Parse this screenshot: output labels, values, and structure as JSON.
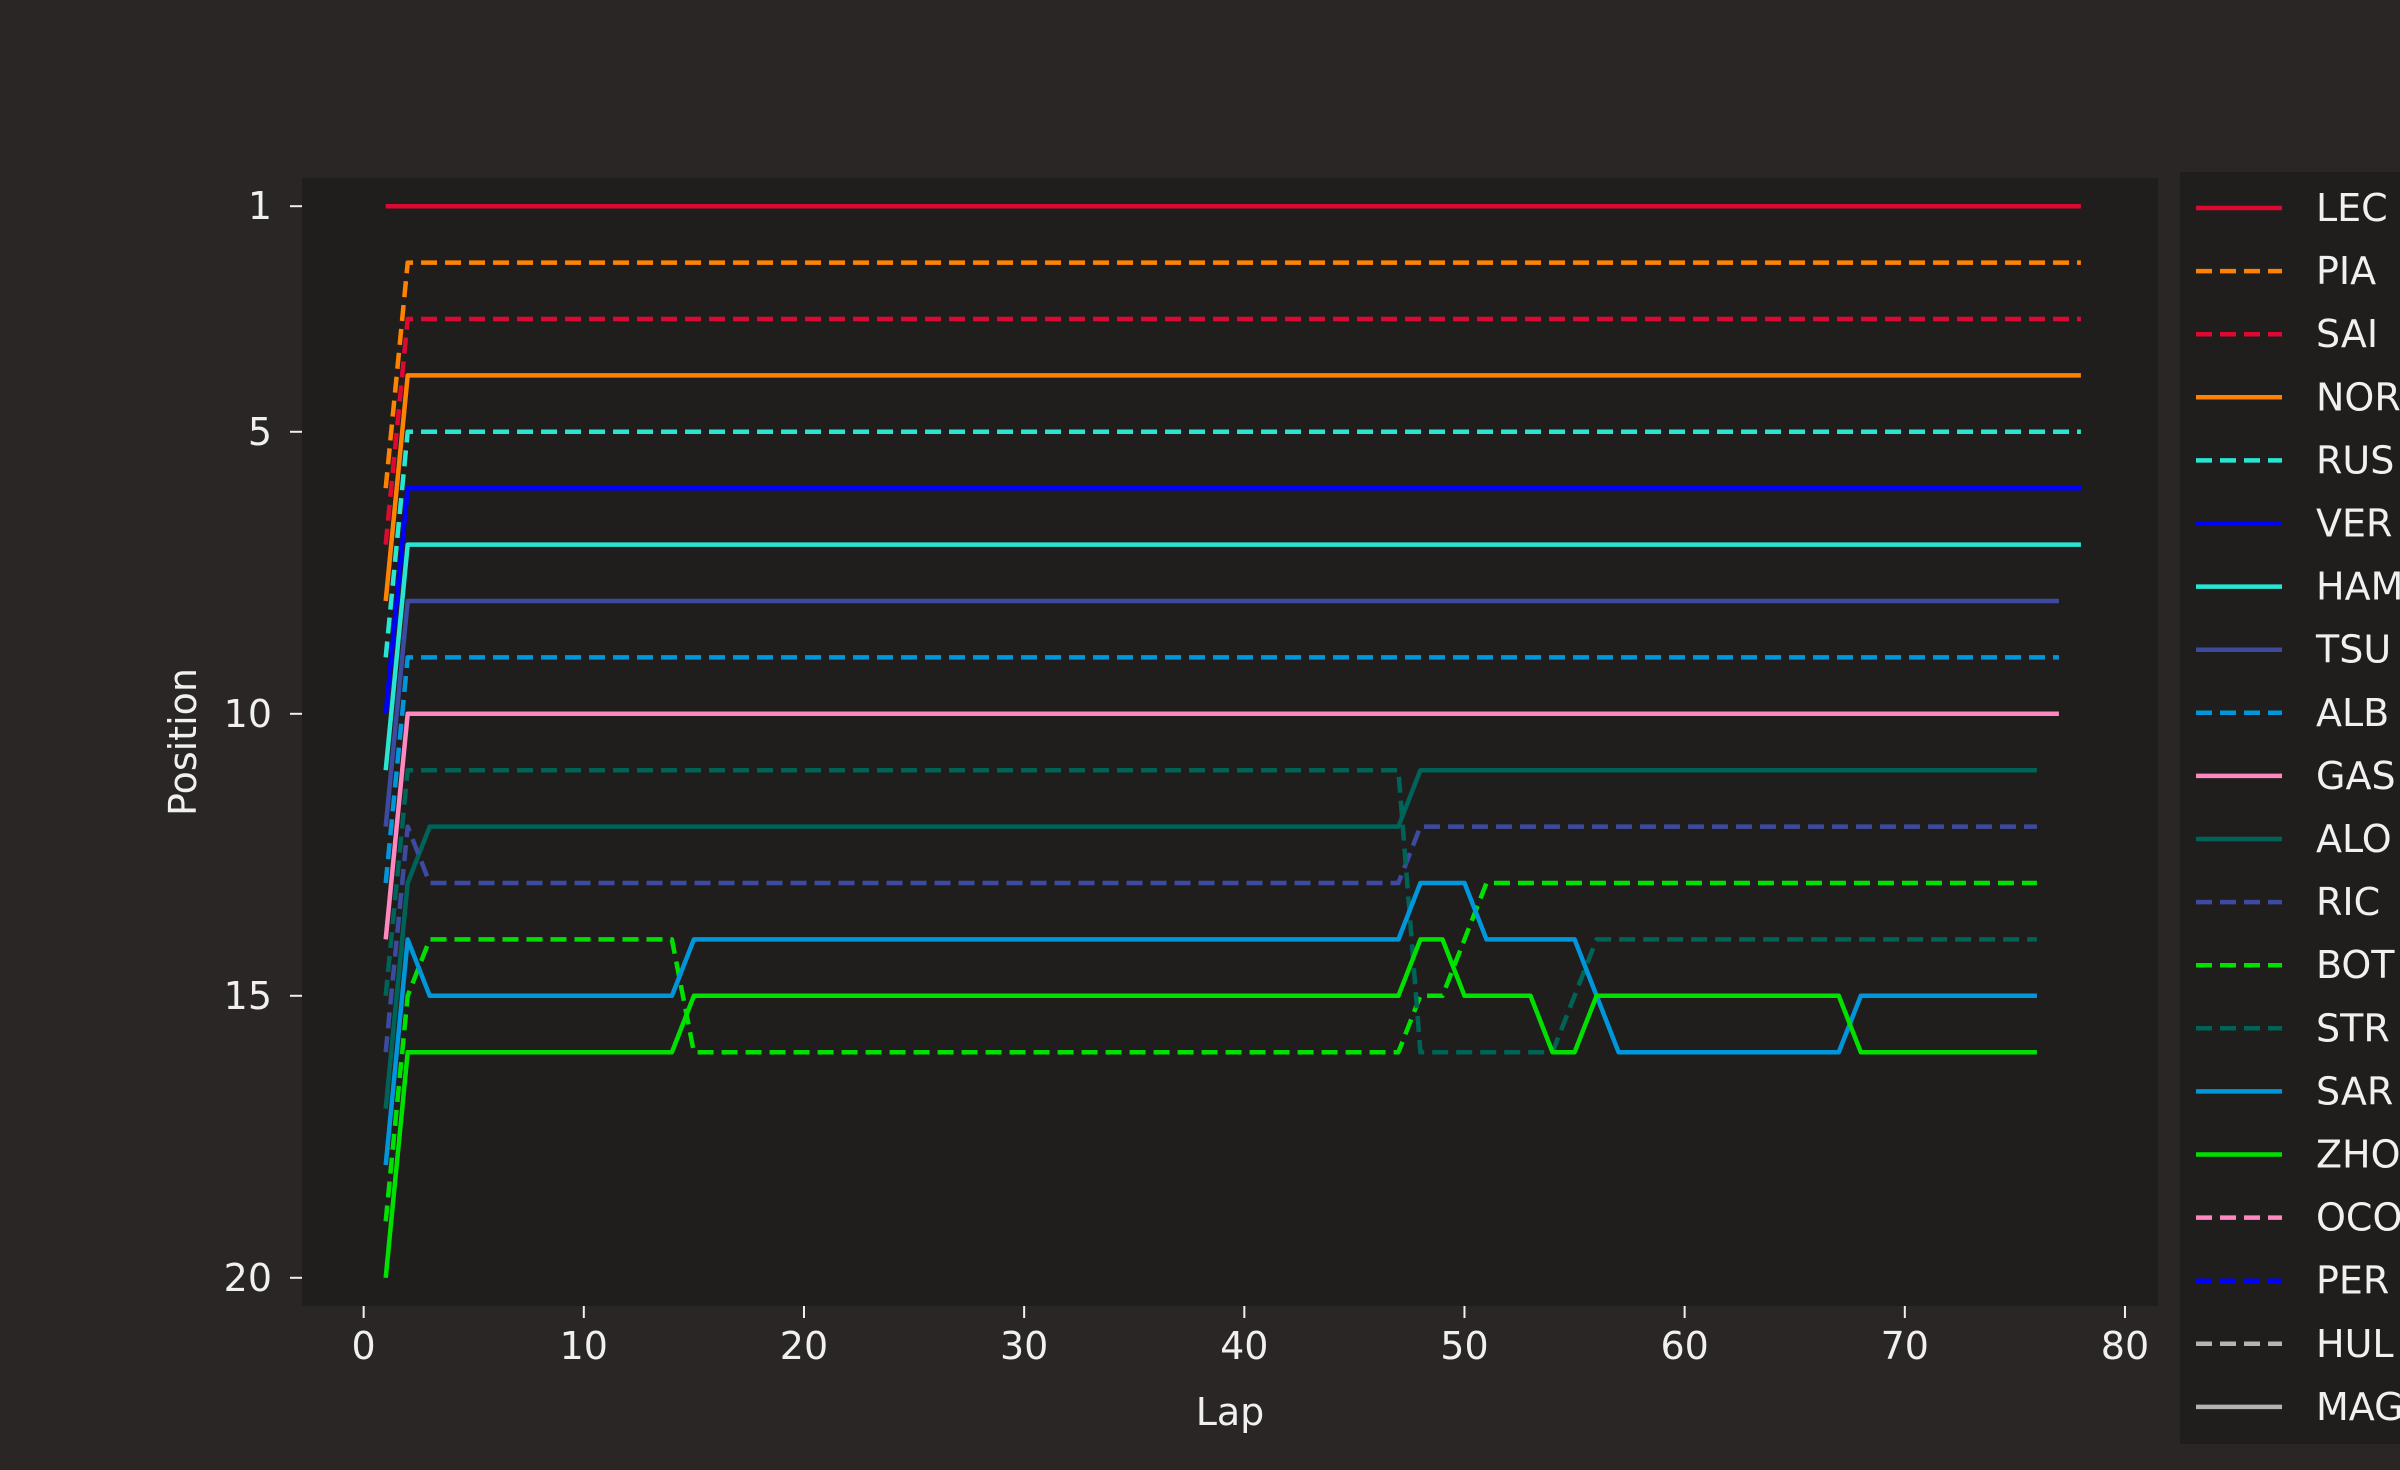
{
  "chart_data": {
    "type": "line",
    "title": "",
    "xlabel": "Lap",
    "ylabel": "Position",
    "xlim": [
      -2.8,
      81.5
    ],
    "ylim": [
      20.5,
      0.5
    ],
    "y_inverted": true,
    "xticks": [
      0,
      10,
      20,
      30,
      40,
      50,
      60,
      70,
      80
    ],
    "yticks": [
      1,
      5,
      10,
      15,
      20
    ],
    "grid": false,
    "legend_position": "right",
    "background": "#1f1e1d",
    "figure_background": "#292625",
    "series": [
      {
        "name": "LEC",
        "color": "#dc0a32",
        "dash": "solid",
        "x": [
          1,
          78
        ],
        "y": [
          1,
          1
        ]
      },
      {
        "name": "PIA",
        "color": "#ff8200",
        "dash": "dashed",
        "x": [
          1,
          2,
          78
        ],
        "y": [
          6,
          2,
          2
        ]
      },
      {
        "name": "SAI",
        "color": "#dc0a32",
        "dash": "dashed",
        "x": [
          1,
          2,
          78
        ],
        "y": [
          7,
          3,
          3
        ]
      },
      {
        "name": "NOR",
        "color": "#ff8200",
        "dash": "solid",
        "x": [
          1,
          2,
          78
        ],
        "y": [
          8,
          4,
          4
        ]
      },
      {
        "name": "RUS",
        "color": "#28e6d2",
        "dash": "dashed",
        "x": [
          1,
          2,
          78
        ],
        "y": [
          9,
          5,
          5
        ]
      },
      {
        "name": "VER",
        "color": "#0000ff",
        "dash": "solid",
        "x": [
          1,
          2,
          78
        ],
        "y": [
          10,
          6,
          6
        ]
      },
      {
        "name": "HAM",
        "color": "#28e6d2",
        "dash": "solid",
        "x": [
          1,
          2,
          78
        ],
        "y": [
          11,
          7,
          7
        ]
      },
      {
        "name": "TSU",
        "color": "#3c4ba0",
        "dash": "solid",
        "x": [
          1,
          2,
          77
        ],
        "y": [
          12,
          8,
          8
        ]
      },
      {
        "name": "ALB",
        "color": "#0096dc",
        "dash": "dashed",
        "x": [
          1,
          2,
          77
        ],
        "y": [
          13,
          9,
          9
        ]
      },
      {
        "name": "GAS",
        "color": "#ff88bf",
        "dash": "solid",
        "x": [
          1,
          2,
          77
        ],
        "y": [
          14,
          10,
          10
        ]
      },
      {
        "name": "ALO",
        "color": "#006358",
        "dash": "solid",
        "x": [
          1,
          2,
          3,
          47,
          48,
          76
        ],
        "y": [
          17,
          13,
          12,
          12,
          11,
          11
        ]
      },
      {
        "name": "RIC",
        "color": "#3c4ba0",
        "dash": "dashed",
        "x": [
          1,
          2,
          3,
          47,
          48,
          76
        ],
        "y": [
          16,
          12,
          13,
          13,
          12,
          12
        ]
      },
      {
        "name": "BOT",
        "color": "#00e100",
        "dash": "dashed",
        "x": [
          1,
          2,
          3,
          14,
          15,
          47,
          48,
          49,
          51,
          76
        ],
        "y": [
          19,
          15,
          14,
          14,
          16,
          16,
          15,
          15,
          13,
          13
        ]
      },
      {
        "name": "STR",
        "color": "#006358",
        "dash": "dashed",
        "x": [
          1,
          2,
          47,
          48,
          54,
          56,
          76
        ],
        "y": [
          15,
          11,
          11,
          16,
          16,
          14,
          14
        ]
      },
      {
        "name": "SAR",
        "color": "#0096dc",
        "dash": "solid",
        "x": [
          1,
          2,
          3,
          14,
          15,
          47,
          48,
          50,
          51,
          55,
          57,
          67,
          68,
          76
        ],
        "y": [
          18,
          14,
          15,
          15,
          14,
          14,
          13,
          13,
          14,
          14,
          16,
          16,
          15,
          15
        ]
      },
      {
        "name": "ZHO",
        "color": "#00e100",
        "dash": "solid",
        "x": [
          1,
          2,
          14,
          15,
          47,
          48,
          49,
          50,
          53,
          54,
          55,
          56,
          67,
          68,
          76
        ],
        "y": [
          20,
          16,
          16,
          15,
          15,
          14,
          14,
          15,
          15,
          16,
          16,
          15,
          15,
          16,
          16
        ]
      },
      {
        "name": "OCO",
        "color": "#ff88bf",
        "dash": "dashed",
        "x": [],
        "y": []
      },
      {
        "name": "PER",
        "color": "#0000ff",
        "dash": "dashed",
        "x": [],
        "y": []
      },
      {
        "name": "HUL",
        "color": "#b4b4b4",
        "dash": "dashed",
        "x": [],
        "y": []
      },
      {
        "name": "MAG",
        "color": "#b4b4b4",
        "dash": "solid",
        "x": [],
        "y": []
      }
    ]
  }
}
